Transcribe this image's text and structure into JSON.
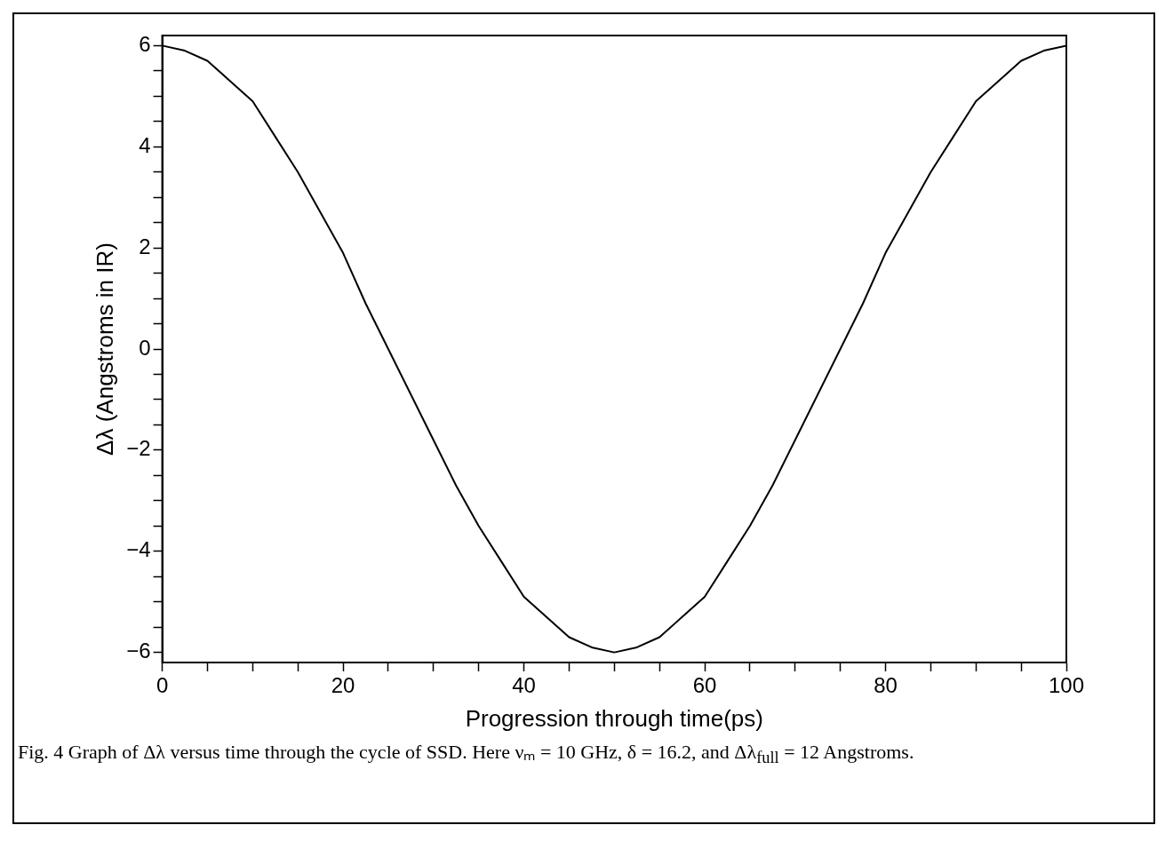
{
  "chart_data": {
    "type": "line",
    "xlabel": "Progression through time(ps)",
    "ylabel": "Δλ (Angstroms in IR)",
    "x": [
      0,
      2.5,
      5,
      7.5,
      10,
      12.5,
      15,
      17.5,
      20,
      22.5,
      25,
      27.5,
      30,
      32.5,
      35,
      37.5,
      40,
      42.5,
      45,
      47.5,
      50,
      52.5,
      55,
      57.5,
      60,
      62.5,
      65,
      67.5,
      70,
      72.5,
      75,
      77.5,
      80,
      82.5,
      85,
      87.5,
      90,
      92.5,
      95,
      97.5,
      100
    ],
    "series": [
      {
        "color": "#000000",
        "values": [
          6.0,
          5.9,
          5.7,
          5.3,
          4.9,
          4.2,
          3.5,
          2.7,
          1.9,
          0.9,
          0.0,
          -0.9,
          -1.8,
          -2.7,
          -3.5,
          -4.2,
          -4.9,
          -5.3,
          -5.7,
          -5.9,
          -6.0,
          -5.9,
          -5.7,
          -5.3,
          -4.9,
          -4.2,
          -3.5,
          -2.7,
          -1.8,
          -0.9,
          0.0,
          0.9,
          1.9,
          2.7,
          3.5,
          4.2,
          4.9,
          5.3,
          5.7,
          5.9,
          6.0
        ]
      }
    ],
    "xlim": [
      0,
      100
    ],
    "ylim": [
      -6.2,
      6.2
    ],
    "xticks": [
      0,
      {
        "value": 5,
        "label": null
      },
      {
        "value": 10,
        "label": null
      },
      {
        "value": 15,
        "label": null
      },
      20,
      {
        "value": 25,
        "label": null
      },
      {
        "value": 30,
        "label": null
      },
      {
        "value": 35,
        "label": null
      },
      40,
      {
        "value": 45,
        "label": null
      },
      {
        "value": 50,
        "label": null
      },
      {
        "value": 55,
        "label": null
      },
      60,
      {
        "value": 65,
        "label": null
      },
      {
        "value": 70,
        "label": null
      },
      {
        "value": 75,
        "label": null
      },
      80,
      {
        "value": 85,
        "label": null
      },
      {
        "value": 90,
        "label": null
      },
      {
        "value": 95,
        "label": null
      },
      100
    ],
    "yticks": [
      -6,
      {
        "value": -5.5,
        "label": null
      },
      {
        "value": -5,
        "label": null
      },
      {
        "value": -4.5,
        "label": null
      },
      -4,
      {
        "value": -3.5,
        "label": null
      },
      {
        "value": -3,
        "label": null
      },
      {
        "value": -2.5,
        "label": null
      },
      -2,
      {
        "value": -1.5,
        "label": null
      },
      {
        "value": -1,
        "label": null
      },
      {
        "value": -0.5,
        "label": null
      },
      0,
      {
        "value": 0.5,
        "label": null
      },
      {
        "value": 1,
        "label": null
      },
      {
        "value": 1.5,
        "label": null
      },
      2,
      {
        "value": 2.5,
        "label": null
      },
      {
        "value": 3,
        "label": null
      },
      {
        "value": 3.5,
        "label": null
      },
      4,
      {
        "value": 4.5,
        "label": null
      },
      {
        "value": 5,
        "label": null
      },
      {
        "value": 5.5,
        "label": null
      },
      6
    ],
    "marker": "none",
    "line_style": "solid",
    "grid": false,
    "legend": false,
    "annotations": [
      "Fig. 4  Graph of Δλ versus time through the cycle of SSD.  Here νₘ = 10 GHz, δ = 16.2, and Δλ$_{full}$ = 12 Angstroms."
    ]
  }
}
